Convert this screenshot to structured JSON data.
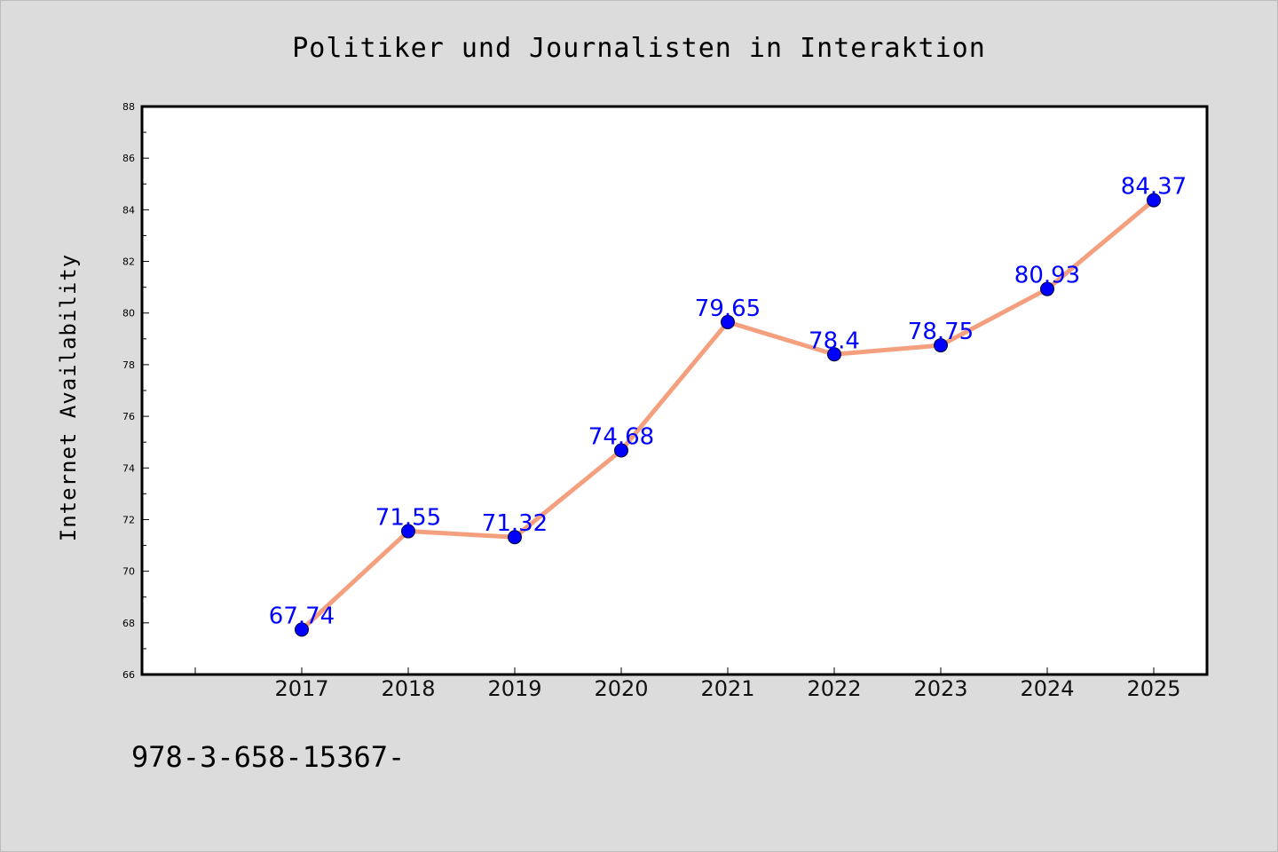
{
  "footnote": "978-3-658-15367-",
  "chart_data": {
    "type": "line",
    "title": "Politiker und Journalisten in Interaktion",
    "xlabel": "",
    "ylabel": "Internet Availability",
    "categories": [
      "2017",
      "2018",
      "2019",
      "2020",
      "2021",
      "2022",
      "2023",
      "2024",
      "2025"
    ],
    "values": [
      67.74,
      71.55,
      71.32,
      74.68,
      79.65,
      78.4,
      78.75,
      80.93,
      84.37
    ],
    "data_labels": [
      "67.74",
      "71.55",
      "71.32",
      "74.68",
      "79.65",
      "78.4",
      "78.75",
      "80.93",
      "84.37"
    ],
    "ylim": [
      66,
      88
    ],
    "yticks": [
      66,
      68,
      70,
      72,
      74,
      76,
      78,
      80,
      82,
      84,
      86,
      88
    ],
    "grid": false,
    "line_color": "#f4a07f",
    "marker_color": "#0000ff",
    "label_color": "#0000ff"
  }
}
